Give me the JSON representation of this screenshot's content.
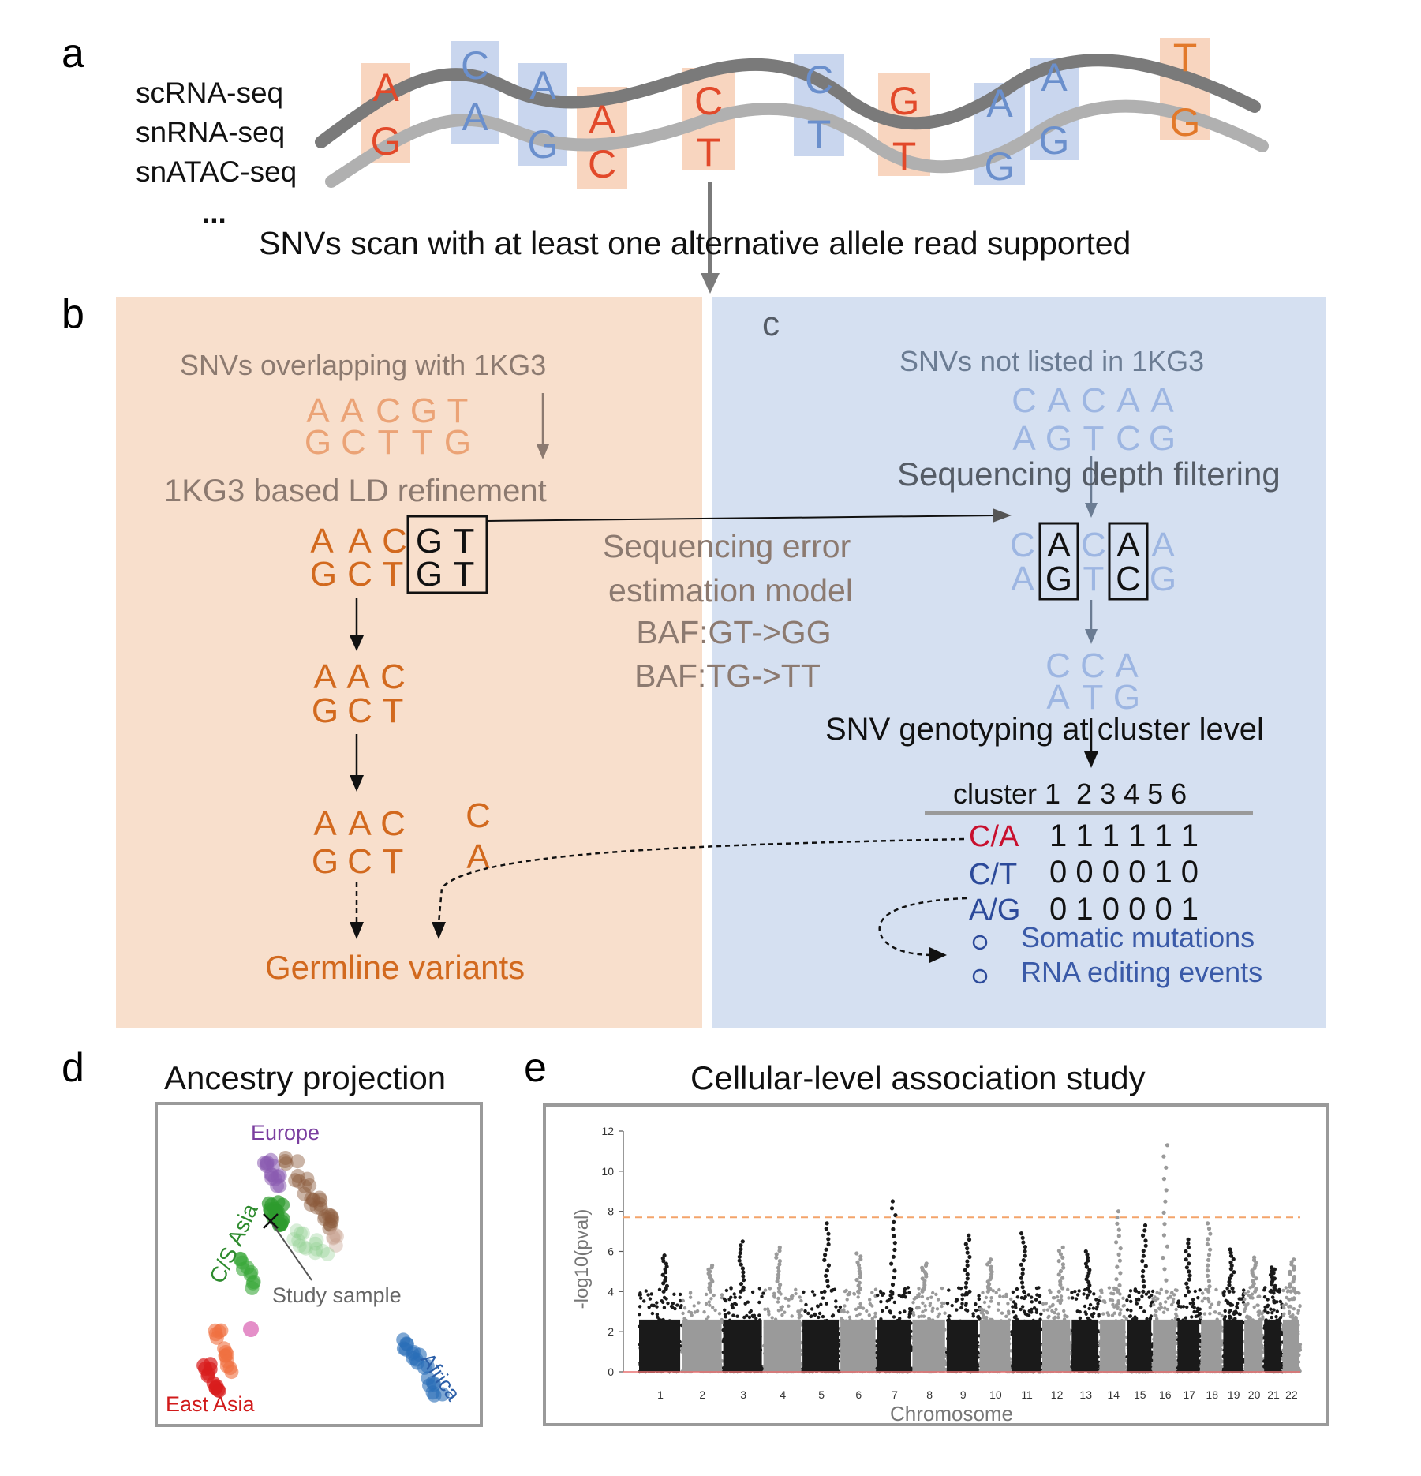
{
  "panels": {
    "a": "a",
    "b": "b",
    "c": "c",
    "d": "d",
    "e": "e"
  },
  "colors": {
    "orange_bg": "#f8dfcc",
    "blue_bg": "#d5e0f1",
    "red_base": "#e2492a",
    "blue_base": "#6a8fcc",
    "orange_text": "#d2691e",
    "light_orange_text": "#eba376",
    "light_blue_text": "#9db6e2",
    "gray_text": "#8c7a70",
    "dark_blue_text": "#3a5aa8"
  },
  "panel_a": {
    "assays": [
      "scRNA-seq",
      "snRNA-seq",
      "snATAC-seq",
      "..."
    ],
    "top_strand": [
      "A",
      "C",
      "A",
      "A",
      "C",
      "C",
      "G",
      "A",
      "A",
      "T"
    ],
    "bottom_strand": [
      "G",
      "A",
      "G",
      "C",
      "T",
      "T",
      "T",
      "G",
      "G",
      "G"
    ],
    "scan_caption": "SNVs scan with at least one alternative allele read supported"
  },
  "panel_b": {
    "heading": "SNVs overlapping with 1KG3",
    "seq_top": [
      "A",
      "A",
      "C",
      "G",
      "T"
    ],
    "seq_bottom": [
      "G",
      "C",
      "T",
      "T",
      "G"
    ],
    "ld_title": "1KG3 based LD refinement",
    "boxed_top": [
      "A",
      "A",
      "C",
      "G",
      "T"
    ],
    "boxed_bottom": [
      "G",
      "C",
      "T",
      "G",
      "T"
    ],
    "step2_top": [
      "A",
      "A",
      "C"
    ],
    "step2_bottom": [
      "G",
      "C",
      "T"
    ],
    "step3_top": [
      "A",
      "A",
      "C"
    ],
    "step3_bottom": [
      "G",
      "C",
      "T"
    ],
    "extra_top": "C",
    "extra_bottom": "A",
    "germline": "Germline variants"
  },
  "error_model": {
    "line1": "Sequencing error",
    "line2": "estimation model",
    "line3": "BAF:GT->GG",
    "line4": "BAF:TG->TT"
  },
  "panel_c": {
    "heading": "SNVs not  listed in 1KG3",
    "seq_top": [
      "C",
      "A",
      "C",
      "A",
      "A"
    ],
    "seq_bottom": [
      "A",
      "G",
      "T",
      "C",
      "G"
    ],
    "depth_title": "Sequencing depth filtering",
    "filtered_top": [
      "C",
      "A",
      "C",
      "A",
      "A"
    ],
    "filtered_bottom": [
      "A",
      "G",
      "T",
      "C",
      "G"
    ],
    "kept_top": [
      "C",
      "C",
      "A"
    ],
    "kept_bottom": [
      "A",
      "T",
      "G"
    ],
    "genotyping_title": "SNV genotyping at cluster level",
    "table_header": "cluster 1  2 3 4 5 6",
    "rows": [
      {
        "label": "C/A",
        "values": "1 1 1 1 1 1",
        "color": "#c8102e"
      },
      {
        "label": "C/T",
        "values": "0 0 0 0 1 0",
        "color": "#2c4a9a"
      },
      {
        "label": "A/G",
        "values": "0 1 0 0 0 1",
        "color": "#2c4a9a"
      }
    ],
    "legend": [
      "Somatic mutations",
      "RNA editing events"
    ]
  },
  "panel_d": {
    "title": "Ancestry projection",
    "labels": {
      "europe": "Europe",
      "cs_asia": "C/S Asia",
      "east_asia": "East Asia",
      "africa": "Africa",
      "study": "Study sample"
    },
    "label_colors": {
      "europe": "#7b3fa0",
      "cs_asia": "#2e8b2e",
      "east_asia": "#d11a1a",
      "africa": "#2a5ea8",
      "study": "#666666"
    }
  },
  "panel_e": {
    "title": "Cellular-level association study",
    "chart_data": {
      "type": "scatter",
      "subtype": "manhattan",
      "xlabel": "Chromosome",
      "ylabel": "-log10(pval)",
      "ylim": [
        0,
        12
      ],
      "yticks": [
        0,
        2,
        4,
        6,
        8,
        10,
        12
      ],
      "threshold": 7.7,
      "chromosomes": [
        "1",
        "2",
        "3",
        "4",
        "5",
        "6",
        "7",
        "8",
        "9",
        "10",
        "11",
        "12",
        "13",
        "14",
        "15",
        "16",
        "17",
        "18",
        "19",
        "20",
        "21",
        "22"
      ],
      "chrom_peaks": [
        5.8,
        5.3,
        6.5,
        6.2,
        7.4,
        5.9,
        8.5,
        5.4,
        6.8,
        5.6,
        6.9,
        6.2,
        6.0,
        8.0,
        7.3,
        11.3,
        6.6,
        7.4,
        6.1,
        5.7,
        5.2,
        5.6
      ],
      "colors": {
        "odd": "#1a1a1a",
        "even": "#9a9a9a",
        "threshold": "#f4a46a",
        "baseline": "#e87070"
      }
    }
  }
}
